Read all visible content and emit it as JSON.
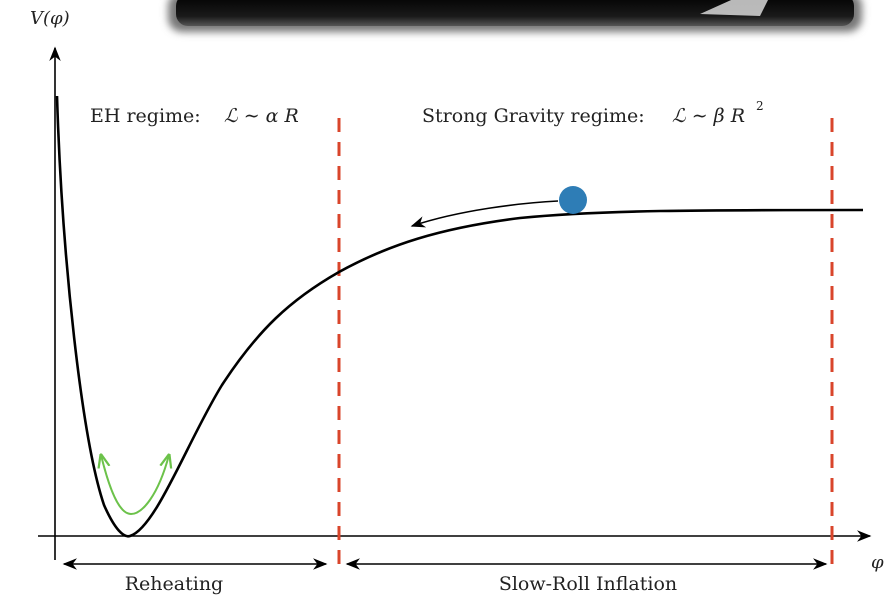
{
  "axes": {
    "y_label": "V(φ)",
    "x_label": "φ"
  },
  "regimes": {
    "eh": {
      "name": "EH regime:",
      "formula": "ℒ ∼ α R"
    },
    "strong": {
      "name": "Strong Gravity regime:",
      "formula_main": "ℒ ∼ β R",
      "formula_exp": "2"
    }
  },
  "phases": {
    "reheating": "Reheating",
    "slow_roll": "Slow-Roll Inflation"
  },
  "colors": {
    "curve": "#000000",
    "boundary": "#d9452b",
    "ball": "#2e7db6",
    "oscillation": "#6cc24a",
    "banner": "#111111"
  }
}
